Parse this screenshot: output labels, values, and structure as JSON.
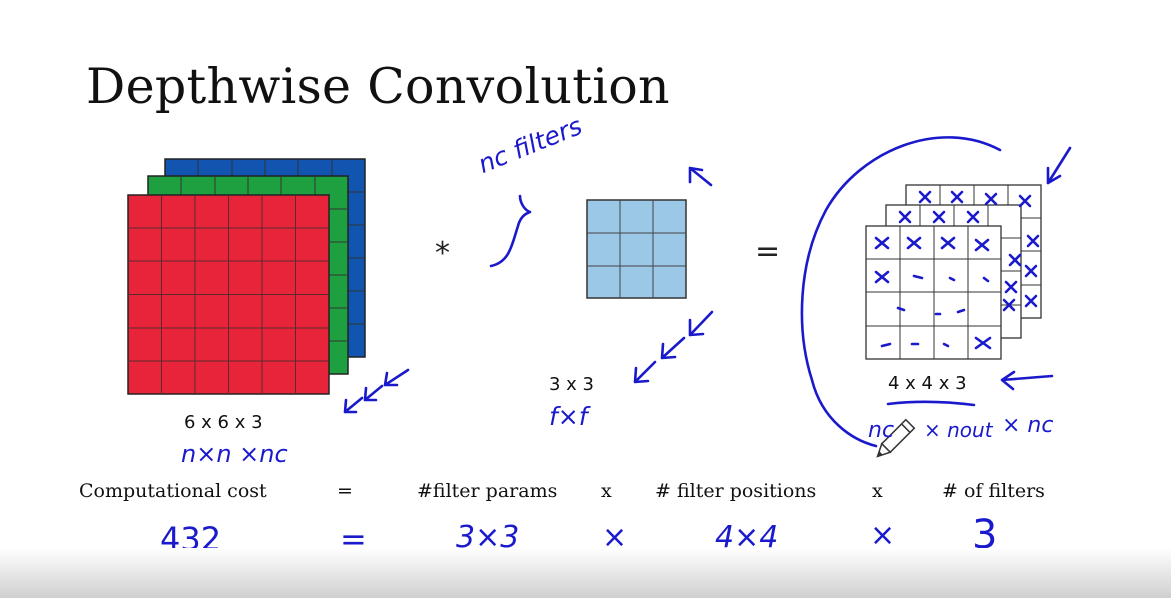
{
  "title": "Depthwise Convolution",
  "input_volume": {
    "label": "6 x 6 x 3",
    "note": "n×n ×nc",
    "colors": [
      "#e8243a",
      "#1ea040",
      "#1155b0"
    ]
  },
  "operators": {
    "convolve": "*",
    "equals": "="
  },
  "filter": {
    "label": "3 x 3",
    "note": "f×f",
    "color": "#9cc8e8",
    "annotation": "nc filters"
  },
  "output_volume": {
    "label": "4 x 4 x 3",
    "note_parts": [
      "nc",
      "× nout",
      "× nc"
    ]
  },
  "formula": {
    "items": [
      "Computational cost",
      "=",
      "#filter params",
      "x",
      "# filter positions",
      "x",
      "# of filters"
    ]
  },
  "handwritten": {
    "items": [
      "432",
      "=",
      "3×3",
      "×",
      "4×4",
      "×",
      "3"
    ]
  },
  "ink_color": "#1a1acc"
}
